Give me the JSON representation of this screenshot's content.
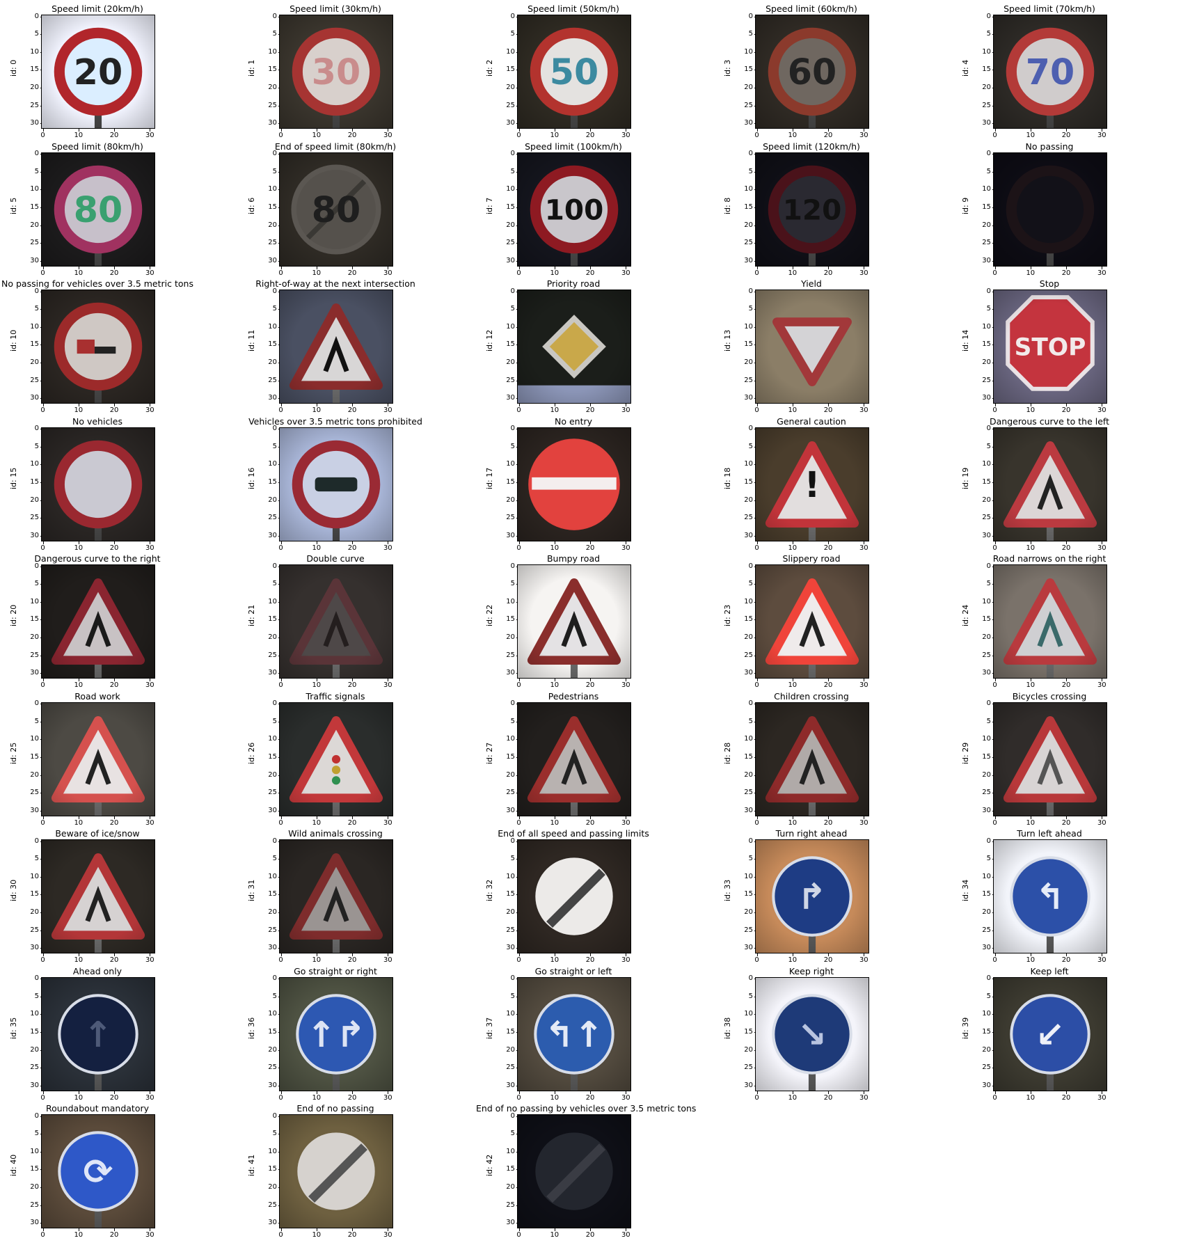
{
  "ticks": [
    "0",
    "5",
    "10",
    "15",
    "20",
    "25",
    "30"
  ],
  "xticks": [
    "0",
    "10",
    "20",
    "30"
  ],
  "ylabel_prefix": "id: ",
  "signs": [
    {
      "id": "0",
      "title": "Speed limit (20km/h)",
      "icon": "speed-20-sign",
      "bg": "#f2f4ff",
      "shape": "circle",
      "ring": "#b1262b",
      "fill": "#dbeeff",
      "text": "20",
      "tc": "#222"
    },
    {
      "id": "1",
      "title": "Speed limit (30km/h)",
      "icon": "speed-30-sign",
      "bg": "#3a352d",
      "shape": "circle",
      "ring": "#a63432",
      "fill": "#d8d0cc",
      "text": "30",
      "tc": "#c98c8c"
    },
    {
      "id": "2",
      "title": "Speed limit (50km/h)",
      "icon": "speed-50-sign",
      "bg": "#2e2a22",
      "shape": "circle",
      "ring": "#b3332e",
      "fill": "#e4e2e0",
      "text": "50",
      "tc": "#3c8aa0"
    },
    {
      "id": "3",
      "title": "Speed limit (60km/h)",
      "icon": "speed-60-sign",
      "bg": "#2f2a24",
      "shape": "circle",
      "ring": "#8b3a2c",
      "fill": "#6f6760",
      "text": "60",
      "tc": "#222"
    },
    {
      "id": "4",
      "title": "Speed limit (70km/h)",
      "icon": "speed-70-sign",
      "bg": "#2d2a26",
      "shape": "circle",
      "ring": "#b33a38",
      "fill": "#d0cccc",
      "text": "70",
      "tc": "#4d5fb0"
    },
    {
      "id": "5",
      "title": "Speed limit (80km/h)",
      "icon": "speed-80-sign",
      "bg": "#1c1b1c",
      "shape": "circle",
      "ring": "#a03260",
      "fill": "#c7c0ca",
      "text": "80",
      "tc": "#3aa070"
    },
    {
      "id": "6",
      "title": "End of speed limit (80km/h)",
      "icon": "end-speed-80-sign",
      "bg": "#2f2b25",
      "shape": "endcircle",
      "ring": "#5b5752",
      "fill": "#55514c",
      "text": "80",
      "tc": "#1e1e1e"
    },
    {
      "id": "7",
      "title": "Speed limit (100km/h)",
      "icon": "speed-100-sign",
      "bg": "#14151d",
      "shape": "circle",
      "ring": "#8e1a22",
      "fill": "#c9c6cb",
      "text": "100",
      "tc": "#111"
    },
    {
      "id": "8",
      "title": "Speed limit (120km/h)",
      "icon": "speed-120-sign",
      "bg": "#0f0f16",
      "shape": "circle",
      "ring": "#4a121a",
      "fill": "#2a2931",
      "text": "120",
      "tc": "#111"
    },
    {
      "id": "9",
      "title": "No passing",
      "icon": "no-passing-sign",
      "bg": "#0d0c14",
      "shape": "circle",
      "ring": "#1c1317",
      "fill": "#121118",
      "text": "",
      "tc": "#000"
    },
    {
      "id": "10",
      "title": "No passing for vehicles over 3.5 metric tons",
      "icon": "no-passing-trucks-sign",
      "bg": "#2b2622",
      "shape": "circle",
      "ring": "#9c2a2a",
      "fill": "#cfc8c4",
      "text": "",
      "tc": "#a83030"
    },
    {
      "id": "11",
      "title": "Right-of-way at the next intersection",
      "icon": "right-of-way-sign",
      "bg": "#4a5062",
      "shape": "triangle",
      "ring": "#8a2c2c",
      "fill": "#d8d6d6",
      "text": "",
      "tc": "#111"
    },
    {
      "id": "12",
      "title": "Priority road",
      "icon": "priority-road-sign",
      "bg": "#1b1e1a",
      "shape": "diamond",
      "ring": "#c9c7c2",
      "fill": "#c9a84a",
      "text": "",
      "tc": "#000"
    },
    {
      "id": "13",
      "title": "Yield",
      "icon": "yield-sign",
      "bg": "#8b7e67",
      "shape": "invtriangle",
      "ring": "#a2383a",
      "fill": "#d4d3d6",
      "text": "",
      "tc": "#000"
    },
    {
      "id": "14",
      "title": "Stop",
      "icon": "stop-sign",
      "bg": "#6a6680",
      "shape": "octagon",
      "ring": "#eae3e6",
      "fill": "#c4343e",
      "text": "STOP",
      "tc": "#f2eaea"
    },
    {
      "id": "15",
      "title": "No vehicles",
      "icon": "no-vehicles-sign",
      "bg": "#2a2624",
      "shape": "circle",
      "ring": "#9a2830",
      "fill": "#cac9d2",
      "text": "",
      "tc": "#000"
    },
    {
      "id": "16",
      "title": "Vehicles over 3.5 metric tons prohibited",
      "icon": "no-trucks-sign",
      "bg": "#a9b6d8",
      "shape": "circle",
      "ring": "#9a2a34",
      "fill": "#c9d0e4",
      "text": "",
      "tc": "#1e2a2a"
    },
    {
      "id": "17",
      "title": "No entry",
      "icon": "no-entry-sign",
      "bg": "#2b2420",
      "shape": "noentry",
      "ring": "#e2423e",
      "fill": "#e2423e",
      "text": "",
      "tc": "#fff"
    },
    {
      "id": "18",
      "title": "General caution",
      "icon": "general-caution-sign",
      "bg": "#4a3d2c",
      "shape": "triangle",
      "ring": "#c2343a",
      "fill": "#e2dede",
      "text": "!",
      "tc": "#111"
    },
    {
      "id": "19",
      "title": "Dangerous curve to the left",
      "icon": "curve-left-sign",
      "bg": "#38342c",
      "shape": "triangle",
      "ring": "#bb3a40",
      "fill": "#dcd6d6",
      "text": "",
      "tc": "#222"
    },
    {
      "id": "20",
      "title": "Dangerous curve to the right",
      "icon": "curve-right-sign",
      "bg": "#201d1b",
      "shape": "triangle",
      "ring": "#8a2530",
      "fill": "#c8c2c4",
      "text": "",
      "tc": "#1a1a1a"
    },
    {
      "id": "21",
      "title": "Double curve",
      "icon": "double-curve-sign",
      "bg": "#35302e",
      "shape": "triangle",
      "ring": "#5a3438",
      "fill": "#4e4848",
      "text": "",
      "tc": "#241e1e"
    },
    {
      "id": "22",
      "title": "Bumpy road",
      "icon": "bumpy-road-sign",
      "bg": "#f6f4f2",
      "shape": "triangle",
      "ring": "#8a2e2c",
      "fill": "#e4e2e4",
      "text": "",
      "tc": "#1e1e1e"
    },
    {
      "id": "23",
      "title": "Slippery road",
      "icon": "slippery-road-sign",
      "bg": "#5d4c3e",
      "shape": "triangle",
      "ring": "#f0443a",
      "fill": "#efebeb",
      "text": "",
      "tc": "#222"
    },
    {
      "id": "24",
      "title": "Road narrows on the right",
      "icon": "road-narrows-sign",
      "bg": "#7a726a",
      "shape": "triangle",
      "ring": "#b93a3e",
      "fill": "#cfcfd2",
      "text": "",
      "tc": "#3a6a6a"
    },
    {
      "id": "25",
      "title": "Road work",
      "icon": "road-work-sign",
      "bg": "#4d4a44",
      "shape": "triangle",
      "ring": "#d5514e",
      "fill": "#e8e2e2",
      "text": "",
      "tc": "#222"
    },
    {
      "id": "26",
      "title": "Traffic signals",
      "icon": "traffic-signals-sign",
      "bg": "#2a2d2c",
      "shape": "triangle",
      "ring": "#c2383a",
      "fill": "#dcd8d6",
      "text": "",
      "tc": "#222"
    },
    {
      "id": "27",
      "title": "Pedestrians",
      "icon": "pedestrians-sign",
      "bg": "#221f1d",
      "shape": "triangle",
      "ring": "#9a2e2c",
      "fill": "#b8b2b0",
      "text": "",
      "tc": "#222"
    },
    {
      "id": "28",
      "title": "Children crossing",
      "icon": "children-crossing-sign",
      "bg": "#2c2722",
      "shape": "triangle",
      "ring": "#8e2a2a",
      "fill": "#b0aaa8",
      "text": "",
      "tc": "#222"
    },
    {
      "id": "29",
      "title": "Bicycles crossing",
      "icon": "bicycles-crossing-sign",
      "bg": "#302c2a",
      "shape": "triangle",
      "ring": "#b8383a",
      "fill": "#d8d4d4",
      "text": "",
      "tc": "#555"
    },
    {
      "id": "30",
      "title": "Beware of ice/snow",
      "icon": "ice-snow-sign",
      "bg": "#2d2924",
      "shape": "triangle",
      "ring": "#b33638",
      "fill": "#d6d2d2",
      "text": "",
      "tc": "#222"
    },
    {
      "id": "31",
      "title": "Wild animals crossing",
      "icon": "wild-animals-sign",
      "bg": "#2a2623",
      "shape": "triangle",
      "ring": "#7e2c2c",
      "fill": "#9a9492",
      "text": "",
      "tc": "#222"
    },
    {
      "id": "32",
      "title": "End of all speed and passing limits",
      "icon": "end-all-limits-sign",
      "bg": "#2e2722",
      "shape": "endall",
      "ring": "#eceae8",
      "fill": "#eceae8",
      "text": "",
      "tc": "#444"
    },
    {
      "id": "33",
      "title": "Turn right ahead",
      "icon": "turn-right-sign",
      "bg": "#c68a5a",
      "shape": "bluecircle",
      "ring": "#1e3c84",
      "fill": "#1e3c84",
      "text": "↱",
      "tc": "#cfd6e6"
    },
    {
      "id": "34",
      "title": "Turn left ahead",
      "icon": "turn-left-sign",
      "bg": "#f2f4fa",
      "shape": "bluecircle",
      "ring": "#2c50a8",
      "fill": "#2c50a8",
      "text": "↰",
      "tc": "#e6ecf8"
    },
    {
      "id": "35",
      "title": "Ahead only",
      "icon": "ahead-only-sign",
      "bg": "#2a3038",
      "shape": "bluecircle",
      "ring": "#142040",
      "fill": "#142040",
      "text": "↑",
      "tc": "#4e5a78"
    },
    {
      "id": "36",
      "title": "Go straight or right",
      "icon": "straight-or-right-sign",
      "bg": "#4e5242",
      "shape": "bluecircle",
      "ring": "#2d58b2",
      "fill": "#2d58b2",
      "text": "↑↱",
      "tc": "#dde4f4"
    },
    {
      "id": "37",
      "title": "Go straight or left",
      "icon": "straight-or-left-sign",
      "bg": "#524a3e",
      "shape": "bluecircle",
      "ring": "#2c5cae",
      "fill": "#2c5cae",
      "text": "↰↑",
      "tc": "#e4eaf6"
    },
    {
      "id": "38",
      "title": "Keep right",
      "icon": "keep-right-sign",
      "bg": "#f4f4fa",
      "shape": "bluecircle",
      "ring": "#1e3a78",
      "fill": "#1e3a78",
      "text": "↘",
      "tc": "#b8c4e0"
    },
    {
      "id": "39",
      "title": "Keep left",
      "icon": "keep-left-sign",
      "bg": "#3c3a30",
      "shape": "bluecircle",
      "ring": "#2c4ea6",
      "fill": "#2c4ea6",
      "text": "↙",
      "tc": "#eef0f8"
    },
    {
      "id": "40",
      "title": "Roundabout mandatory",
      "icon": "roundabout-sign",
      "bg": "#5a4a3a",
      "shape": "bluecircle",
      "ring": "#2e58c8",
      "fill": "#2e58c8",
      "text": "⟳",
      "tc": "#dfe6f8"
    },
    {
      "id": "41",
      "title": "End of no passing",
      "icon": "end-no-passing-sign",
      "bg": "#6e6040",
      "shape": "endall",
      "ring": "#d6d2ce",
      "fill": "#d6d2ce",
      "text": "",
      "tc": "#555"
    },
    {
      "id": "42",
      "title": "End of no passing by vehicles over 3.5 metric tons",
      "icon": "end-no-passing-trucks-sign",
      "bg": "#0e0f16",
      "shape": "endall",
      "ring": "#23262e",
      "fill": "#23262e",
      "text": "",
      "tc": "#3a3c44"
    }
  ]
}
